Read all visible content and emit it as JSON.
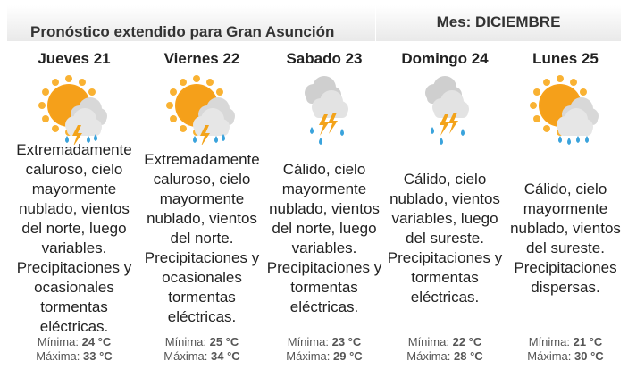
{
  "header": {
    "title": "Pronóstico extendido para Gran Asunción",
    "month": "Mes: DICIEMBRE"
  },
  "days": [
    {
      "name": "Jueves 21",
      "icon": "sun-cloud-storm-icon",
      "desc": "Extremadamente caluroso, cielo mayormente nublado, vientos del norte, luego variables. Precipitaciones y ocasionales tormentas eléctricas.",
      "min_label": "Mínima:",
      "min": "24 °C",
      "max_label": "Máxima:",
      "max": "33 °C"
    },
    {
      "name": "Viernes 22",
      "icon": "sun-cloud-storm-icon",
      "desc": "Extremadamente caluroso, cielo mayormente nublado, vientos del norte. Precipitaciones y ocasionales tormentas eléctricas.",
      "min_label": "Mínima:",
      "min": "25 °C",
      "max_label": "Máxima:",
      "max": "34 °C"
    },
    {
      "name": "Sabado 23",
      "icon": "storm-cloud-icon",
      "desc": "Cálido, cielo mayormente nublado, vientos del norte, luego variables. Precipitaciones y tormentas eléctricas.",
      "min_label": "Mínima:",
      "min": "23 °C",
      "max_label": "Máxima:",
      "max": "29 °C"
    },
    {
      "name": "Domingo 24",
      "icon": "storm-cloud-icon",
      "desc": "Cálido, cielo nublado, vientos variables, luego del sureste. Precipitaciones y tormentas eléctricas.",
      "min_label": "Mínima:",
      "min": "22 °C",
      "max_label": "Máxima:",
      "max": "28 °C"
    },
    {
      "name": "Lunes 25",
      "icon": "sun-cloud-rain-icon",
      "desc": "Cálido, cielo mayormente nublado, vientos del sureste. Precipitaciones dispersas.",
      "min_label": "Mínima:",
      "min": "21 °C",
      "max_label": "Máxima:",
      "max": "30 °C"
    }
  ]
}
